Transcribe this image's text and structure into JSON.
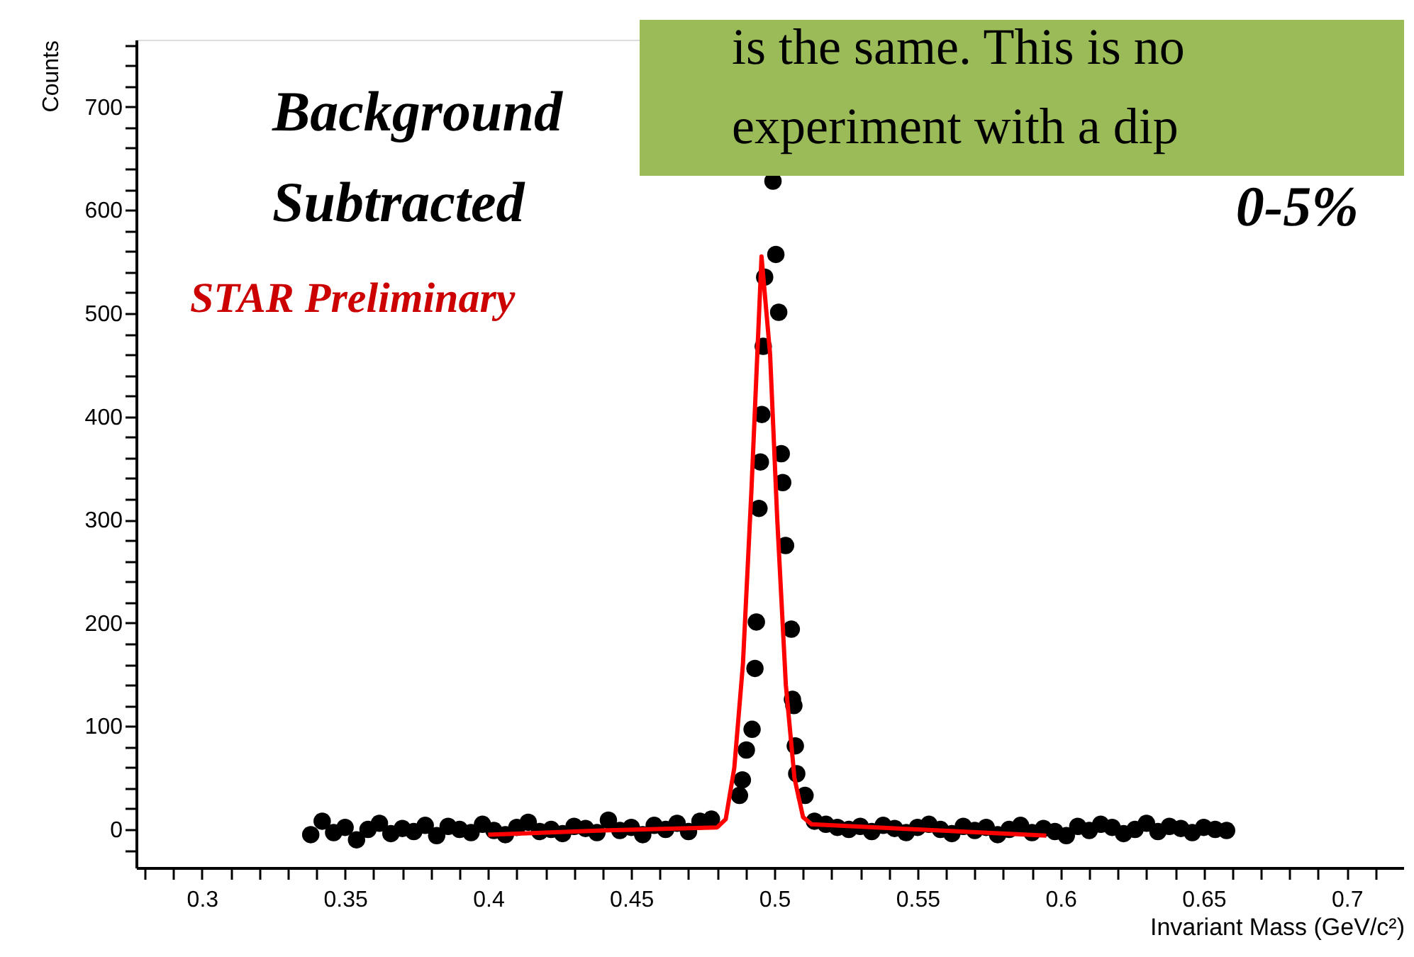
{
  "chart_data": {
    "type": "scatter",
    "xlabel": "Invariant Mass (GeV/c²)",
    "ylabel": "Counts",
    "annotations": [
      "Background Subtracted",
      "STAR Preliminary",
      "0-5%",
      "is the same. This is no",
      "experiment with a dip"
    ],
    "xlim": [
      0.277,
      0.72
    ],
    "ylim": [
      -37,
      765
    ],
    "xticks": [
      {
        "value": 0.28,
        "label": null
      },
      {
        "value": 0.29,
        "label": null
      },
      0.3,
      {
        "value": 0.31,
        "label": null
      },
      {
        "value": 0.32,
        "label": null
      },
      {
        "value": 0.33,
        "label": null
      },
      {
        "value": 0.34,
        "label": null
      },
      0.35,
      {
        "value": 0.36,
        "label": null
      },
      {
        "value": 0.37,
        "label": null
      },
      {
        "value": 0.38,
        "label": null
      },
      {
        "value": 0.39,
        "label": null
      },
      0.4,
      {
        "value": 0.41,
        "label": null
      },
      {
        "value": 0.42,
        "label": null
      },
      {
        "value": 0.43,
        "label": null
      },
      {
        "value": 0.44,
        "label": null
      },
      0.45,
      {
        "value": 0.46,
        "label": null
      },
      {
        "value": 0.47,
        "label": null
      },
      {
        "value": 0.48,
        "label": null
      },
      {
        "value": 0.49,
        "label": null
      },
      0.5,
      {
        "value": 0.51,
        "label": null
      },
      {
        "value": 0.52,
        "label": null
      },
      {
        "value": 0.53,
        "label": null
      },
      {
        "value": 0.54,
        "label": null
      },
      0.55,
      {
        "value": 0.56,
        "label": null
      },
      {
        "value": 0.57,
        "label": null
      },
      {
        "value": 0.58,
        "label": null
      },
      {
        "value": 0.59,
        "label": null
      },
      0.6,
      {
        "value": 0.61,
        "label": null
      },
      {
        "value": 0.62,
        "label": null
      },
      {
        "value": 0.63,
        "label": null
      },
      {
        "value": 0.64,
        "label": null
      },
      0.65,
      {
        "value": 0.66,
        "label": null
      },
      {
        "value": 0.67,
        "label": null
      },
      {
        "value": 0.68,
        "label": null
      },
      {
        "value": 0.69,
        "label": null
      },
      0.7,
      {
        "value": 0.71,
        "label": null
      }
    ],
    "yticks": [
      {
        "value": -20,
        "label": null
      },
      0,
      {
        "value": 20,
        "label": null
      },
      {
        "value": 40,
        "label": null
      },
      {
        "value": 60,
        "label": null
      },
      {
        "value": 80,
        "label": null
      },
      100,
      {
        "value": 120,
        "label": null
      },
      {
        "value": 140,
        "label": null
      },
      {
        "value": 160,
        "label": null
      },
      {
        "value": 180,
        "label": null
      },
      200,
      {
        "value": 220,
        "label": null
      },
      {
        "value": 240,
        "label": null
      },
      {
        "value": 260,
        "label": null
      },
      {
        "value": 280,
        "label": null
      },
      300,
      {
        "value": 320,
        "label": null
      },
      {
        "value": 340,
        "label": null
      },
      {
        "value": 360,
        "label": null
      },
      {
        "value": 380,
        "label": null
      },
      400,
      {
        "value": 420,
        "label": null
      },
      {
        "value": 440,
        "label": null
      },
      {
        "value": 460,
        "label": null
      },
      {
        "value": 480,
        "label": null
      },
      500,
      {
        "value": 520,
        "label": null
      },
      {
        "value": 540,
        "label": null
      },
      {
        "value": 560,
        "label": null
      },
      {
        "value": 580,
        "label": null
      },
      600,
      {
        "value": 620,
        "label": null
      },
      {
        "value": 640,
        "label": null
      },
      {
        "value": 660,
        "label": null
      },
      {
        "value": 680,
        "label": null
      },
      700,
      {
        "value": 720,
        "label": null
      },
      {
        "value": 740,
        "label": null
      },
      {
        "value": 760,
        "label": null
      }
    ],
    "grid": false,
    "marker": "circle",
    "series": [
      {
        "color": "#000000",
        "x": [
          0.338,
          0.342,
          0.346,
          0.35,
          0.354,
          0.358,
          0.362,
          0.366,
          0.37,
          0.374,
          0.378,
          0.382,
          0.386,
          0.39,
          0.394,
          0.398,
          0.402,
          0.406,
          0.41,
          0.414,
          0.418,
          0.422,
          0.426,
          0.43,
          0.434,
          0.438,
          0.442,
          0.446,
          0.45,
          0.454,
          0.458,
          0.462,
          0.466,
          0.47,
          0.474,
          0.478,
          0.4878,
          0.4888,
          0.4902,
          0.4922,
          0.4932,
          0.4937,
          0.4946,
          0.4951,
          0.4956,
          0.4961,
          0.4966,
          0.4995,
          0.5005,
          0.5015,
          0.5024,
          0.5029,
          0.5039,
          0.5059,
          0.5063,
          0.5068,
          0.5073,
          0.5078,
          0.5107,
          0.514,
          0.518,
          0.522,
          0.526,
          0.53,
          0.534,
          0.538,
          0.542,
          0.546,
          0.55,
          0.554,
          0.558,
          0.562,
          0.566,
          0.57,
          0.574,
          0.578,
          0.582,
          0.586,
          0.59,
          0.594,
          0.598,
          0.602,
          0.606,
          0.61,
          0.614,
          0.618,
          0.622,
          0.626,
          0.63,
          0.634,
          0.638,
          0.642,
          0.646,
          0.65,
          0.654,
          0.658
        ],
        "values": [
          -5,
          8,
          -3,
          2,
          -10,
          0,
          6,
          -4,
          1,
          -2,
          4,
          -6,
          3,
          0,
          -3,
          5,
          -1,
          -5,
          2,
          7,
          -2,
          0,
          -4,
          3,
          1,
          -3,
          9,
          -1,
          2,
          -5,
          4,
          0,
          6,
          -2,
          8,
          10,
          33,
          48,
          77,
          97,
          156,
          201,
          311,
          356,
          402,
          468,
          535,
          628,
          557,
          501,
          364,
          336,
          275,
          194,
          126,
          120,
          81,
          54,
          33,
          8,
          5,
          2,
          0,
          3,
          -2,
          4,
          1,
          -3,
          2,
          5,
          0,
          -4,
          3,
          -1,
          2,
          -5,
          0,
          4,
          -3,
          1,
          -2,
          -6,
          3,
          -1,
          5,
          2,
          -4,
          0,
          6,
          -2,
          3,
          1,
          -3,
          2,
          0,
          -1
        ]
      },
      {
        "type": "line",
        "color": "#ff0000",
        "marker": "none",
        "line_style": "solid",
        "x": [
          0.4,
          0.44,
          0.48,
          0.483,
          0.486,
          0.489,
          0.492,
          0.4955,
          0.4985,
          0.501,
          0.504,
          0.507,
          0.51,
          0.513,
          0.55,
          0.595
        ],
        "values": [
          -5,
          -1,
          2,
          10,
          60,
          160,
          330,
          555,
          460,
          300,
          140,
          50,
          12,
          5,
          0,
          -6
        ]
      }
    ]
  }
}
